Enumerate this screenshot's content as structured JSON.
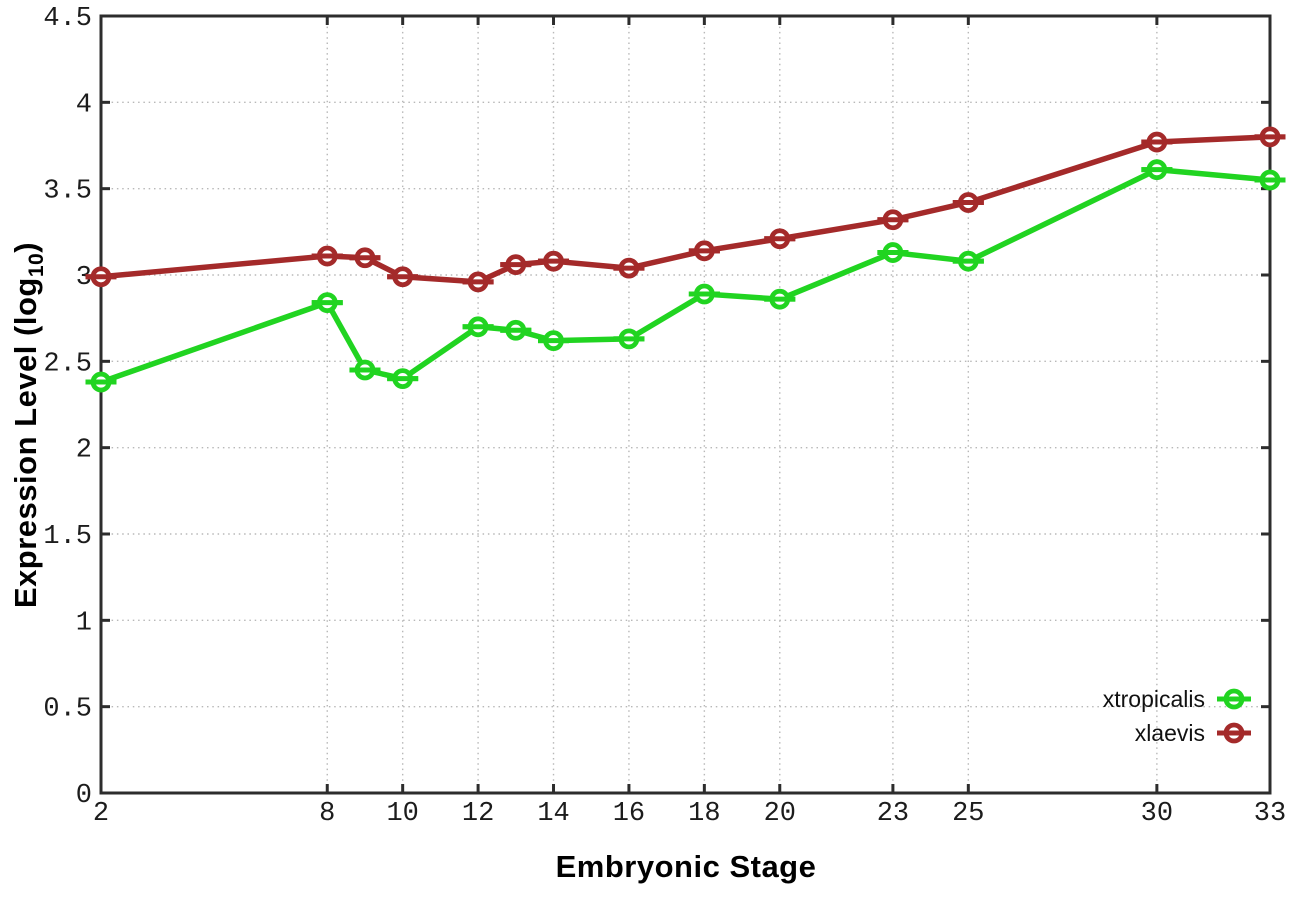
{
  "chart_data": {
    "type": "line",
    "title": "",
    "xlabel": "Embryonic Stage",
    "ylabel": "Expression Level (log10)",
    "ylabel_prefix": "Expression Level (log",
    "ylabel_sub": "10",
    "ylabel_suffix": ")",
    "xlim": [
      2,
      33
    ],
    "ylim": [
      0,
      4.5
    ],
    "x_ticks": [
      2,
      8,
      10,
      12,
      14,
      16,
      18,
      20,
      23,
      25,
      30,
      33
    ],
    "y_ticks": [
      0,
      0.5,
      1,
      1.5,
      2,
      2.5,
      3,
      3.5,
      4,
      4.5
    ],
    "grid": true,
    "legend_position": "bottom-right",
    "x": [
      2,
      8,
      9,
      10,
      12,
      13,
      14,
      16,
      18,
      20,
      23,
      25,
      30,
      33
    ],
    "series": [
      {
        "name": "xtropicalis",
        "color": "#21d421",
        "values": [
          2.38,
          2.84,
          2.45,
          2.4,
          2.7,
          2.68,
          2.62,
          2.63,
          2.89,
          2.86,
          3.13,
          3.08,
          3.61,
          3.55
        ]
      },
      {
        "name": "xlaevis",
        "color": "#a42a2a",
        "values": [
          2.99,
          3.11,
          3.1,
          2.99,
          2.96,
          3.06,
          3.08,
          3.04,
          3.14,
          3.21,
          3.32,
          3.42,
          3.77,
          3.8
        ]
      }
    ],
    "colors": {
      "grid": "#b8b8b8",
      "axis": "#2d2d2d",
      "tick_text": "#1c1c1c"
    }
  }
}
